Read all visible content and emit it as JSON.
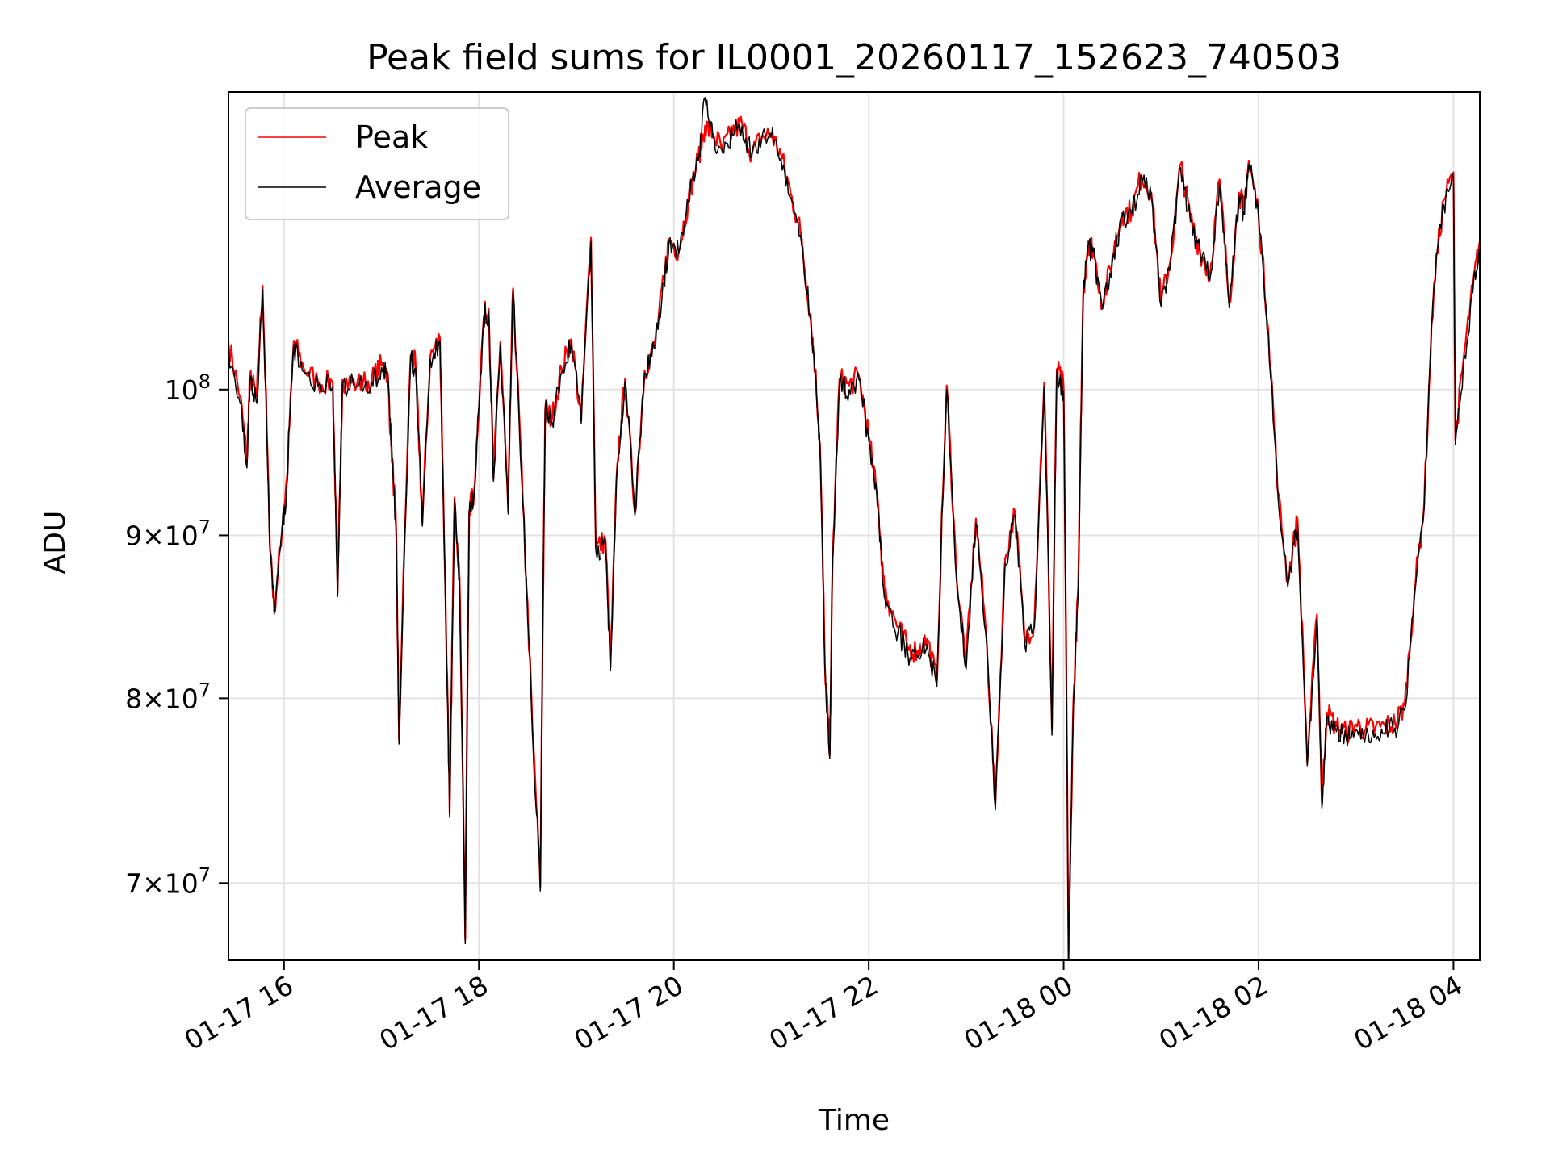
{
  "chart_data": {
    "type": "line",
    "title": "Peak field sums for IL0001_20260117_152623_740503",
    "xlabel": "Time",
    "ylabel": "ADU",
    "yscale": "log",
    "ylim": [
      66200000,
      124000000
    ],
    "xlim_hours": [
      15.43,
      28.27
    ],
    "grid": true,
    "legend_position": "upper-left",
    "x_ticks": [
      {
        "hour": 16,
        "label": "01-17 16"
      },
      {
        "hour": 18,
        "label": "01-17 18"
      },
      {
        "hour": 20,
        "label": "01-17 20"
      },
      {
        "hour": 22,
        "label": "01-17 22"
      },
      {
        "hour": 24,
        "label": "01-18 00"
      },
      {
        "hour": 26,
        "label": "01-18 02"
      },
      {
        "hour": 28,
        "label": "01-18 04"
      }
    ],
    "y_ticks": [
      {
        "value": 70000000,
        "mant": "7",
        "exp": "7"
      },
      {
        "value": 80000000,
        "mant": "8",
        "exp": "7"
      },
      {
        "value": 90000000,
        "mant": "9",
        "exp": "7"
      },
      {
        "value": 100000000,
        "mant": "",
        "exp": "8"
      }
    ],
    "colors": {
      "peak": "#ff0000",
      "average": "#000000",
      "grid": "#e3e3e3"
    },
    "series": [
      {
        "name": "Peak",
        "color": "#ff0000",
        "x": [
          15.43,
          15.55,
          15.62,
          15.65,
          15.72,
          15.78,
          15.85,
          15.9,
          15.98,
          16.03,
          16.1,
          16.2,
          16.35,
          16.5,
          16.55,
          16.6,
          16.75,
          16.9,
          17.0,
          17.06,
          17.1,
          17.15,
          17.18,
          17.3,
          17.35,
          17.42,
          17.5,
          17.6,
          17.65,
          17.7,
          17.75,
          17.8,
          17.86,
          17.9,
          17.95,
          18.05,
          18.1,
          18.15,
          18.22,
          18.3,
          18.35,
          18.45,
          18.55,
          18.63,
          18.68,
          18.75,
          18.85,
          18.95,
          19.05,
          19.15,
          19.2,
          19.3,
          19.35,
          19.42,
          19.5,
          19.6,
          19.7,
          19.8,
          19.9,
          19.95,
          20.05,
          20.15,
          20.25,
          20.32,
          20.4,
          20.5,
          20.6,
          20.7,
          20.8,
          20.9,
          21.0,
          21.1,
          21.2,
          21.3,
          21.4,
          21.45,
          21.5,
          21.55,
          21.6,
          21.63,
          21.7,
          21.8,
          21.9,
          22.0,
          22.1,
          22.15,
          22.2,
          22.3,
          22.4,
          22.5,
          22.6,
          22.7,
          22.8,
          22.9,
          23.0,
          23.1,
          23.2,
          23.3,
          23.4,
          23.5,
          23.6,
          23.7,
          23.8,
          23.88,
          23.93,
          24.0,
          24.05,
          24.1,
          24.15,
          24.2,
          24.25,
          24.3,
          24.4,
          24.5,
          24.6,
          24.7,
          24.8,
          24.9,
          25.0,
          25.1,
          25.2,
          25.3,
          25.4,
          25.5,
          25.6,
          25.7,
          25.8,
          25.85,
          25.9,
          26.0,
          26.1,
          26.2,
          26.3,
          26.4,
          26.5,
          26.6,
          26.65,
          26.7,
          26.8,
          26.9,
          27.0,
          27.1,
          27.2,
          27.3,
          27.4,
          27.5,
          27.6,
          27.7,
          27.8,
          27.9,
          28.0,
          28.02,
          28.1,
          28.2,
          28.27
        ],
        "values": [
          103500000,
          99500000,
          95000000,
          101000000,
          99500000,
          107800000,
          90500000,
          85200000,
          90500000,
          93800000,
          103600000,
          101600000,
          100500000,
          100500000,
          86300000,
          100700000,
          100400000,
          100700000,
          101800000,
          101300000,
          96200000,
          90600000,
          77600000,
          102500000,
          101800000,
          90800000,
          102400000,
          103800000,
          88000000,
          73600000,
          92500000,
          87500000,
          67200000,
          91600000,
          92800000,
          105500000,
          106000000,
          93800000,
          103500000,
          91600000,
          107600000,
          92300000,
          78200000,
          69800000,
          98600000,
          97900000,
          101500000,
          103700000,
          97800000,
          111600000,
          89200000,
          89700000,
          81800000,
          94800000,
          100800000,
          91500000,
          101400000,
          103200000,
          108300000,
          111500000,
          110500000,
          114800000,
          118200000,
          121000000,
          120300000,
          119000000,
          120500000,
          121200000,
          118600000,
          120000000,
          120300000,
          118500000,
          115200000,
          112100000,
          105600000,
          101500000,
          96200000,
          82000000,
          76800000,
          88500000,
          100800000,
          100300000,
          101000000,
          96700000,
          91800000,
          87000000,
          85800000,
          84200000,
          83000000,
          82800000,
          83500000,
          81000000,
          100300000,
          87500000,
          82000000,
          91100000,
          84200000,
          74100000,
          88500000,
          91600000,
          83500000,
          84500000,
          100500000,
          78200000,
          101500000,
          100200000,
          66200000,
          79800000,
          86700000,
          107000000,
          111300000,
          110800000,
          106300000,
          110000000,
          113600000,
          113800000,
          116800000,
          115300000,
          106500000,
          110000000,
          117700000,
          113200000,
          110600000,
          108500000,
          116400000,
          106400000,
          115300000,
          113900000,
          118000000,
          113500000,
          104500000,
          92800000,
          87000000,
          91100000,
          76400000,
          85000000,
          74200000,
          79200000,
          78400000,
          78000000,
          78500000,
          78200000,
          78300000,
          78400000,
          78600000,
          79600000,
          86400000,
          92100000,
          108000000,
          114700000,
          117000000,
          96400000,
          102000000,
          107700000,
          111300000
        ]
      },
      {
        "name": "Average",
        "color": "#000000",
        "x": [
          15.43,
          15.55,
          15.62,
          15.65,
          15.72,
          15.78,
          15.85,
          15.9,
          15.98,
          16.03,
          16.1,
          16.2,
          16.35,
          16.5,
          16.55,
          16.6,
          16.75,
          16.9,
          17.0,
          17.06,
          17.1,
          17.15,
          17.18,
          17.3,
          17.35,
          17.42,
          17.5,
          17.6,
          17.65,
          17.7,
          17.75,
          17.8,
          17.86,
          17.9,
          17.95,
          18.05,
          18.1,
          18.15,
          18.22,
          18.3,
          18.35,
          18.45,
          18.55,
          18.63,
          18.68,
          18.75,
          18.85,
          18.95,
          19.05,
          19.15,
          19.2,
          19.3,
          19.35,
          19.42,
          19.5,
          19.6,
          19.7,
          19.8,
          19.9,
          19.95,
          20.05,
          20.15,
          20.25,
          20.32,
          20.4,
          20.5,
          20.6,
          20.7,
          20.8,
          20.9,
          21.0,
          21.1,
          21.2,
          21.3,
          21.4,
          21.45,
          21.5,
          21.55,
          21.6,
          21.63,
          21.7,
          21.8,
          21.9,
          22.0,
          22.1,
          22.15,
          22.2,
          22.3,
          22.4,
          22.5,
          22.6,
          22.7,
          22.8,
          22.9,
          23.0,
          23.1,
          23.2,
          23.3,
          23.4,
          23.5,
          23.6,
          23.7,
          23.8,
          23.88,
          23.93,
          24.0,
          24.05,
          24.1,
          24.15,
          24.2,
          24.25,
          24.3,
          24.4,
          24.5,
          24.6,
          24.7,
          24.8,
          24.9,
          25.0,
          25.1,
          25.2,
          25.3,
          25.4,
          25.5,
          25.6,
          25.7,
          25.8,
          25.85,
          25.9,
          26.0,
          26.1,
          26.2,
          26.3,
          26.4,
          26.5,
          26.6,
          26.65,
          26.7,
          26.8,
          26.9,
          27.0,
          27.1,
          27.2,
          27.3,
          27.4,
          27.5,
          27.6,
          27.7,
          27.8,
          27.9,
          28.0,
          28.02,
          28.1,
          28.2,
          28.27
        ],
        "values": [
          103000000,
          99000000,
          94500000,
          100500000,
          99000000,
          107500000,
          90000000,
          85000000,
          90200000,
          93300000,
          103300000,
          101300000,
          100200000,
          100200000,
          86100000,
          100400000,
          100200000,
          100500000,
          101600000,
          101100000,
          96000000,
          90400000,
          77400000,
          102300000,
          101600000,
          90600000,
          102200000,
          103600000,
          87800000,
          73400000,
          92300000,
          87300000,
          67000000,
          91400000,
          92600000,
          105300000,
          105800000,
          93600000,
          103300000,
          91400000,
          107400000,
          92100000,
          78000000,
          69600000,
          98400000,
          97700000,
          101300000,
          103500000,
          97600000,
          111300000,
          89000000,
          89500000,
          81600000,
          94600000,
          100600000,
          91300000,
          101200000,
          103000000,
          108000000,
          111200000,
          110300000,
          114500000,
          118000000,
          123500000,
          120000000,
          118700000,
          120200000,
          121000000,
          118300000,
          119700000,
          120000000,
          118200000,
          114900000,
          111800000,
          105300000,
          101200000,
          95900000,
          81800000,
          76600000,
          88300000,
          100500000,
          100000000,
          100700000,
          96400000,
          91500000,
          86700000,
          85500000,
          83900000,
          82700000,
          82500000,
          83200000,
          80700000,
          100000000,
          87200000,
          81700000,
          90800000,
          83900000,
          73800000,
          88200000,
          91300000,
          83200000,
          84200000,
          100200000,
          77900000,
          101200000,
          99900000,
          66000000,
          79500000,
          86400000,
          106700000,
          111000000,
          110500000,
          106000000,
          109700000,
          113300000,
          113500000,
          116500000,
          115000000,
          106200000,
          109700000,
          117400000,
          112900000,
          110300000,
          108200000,
          116100000,
          106100000,
          115000000,
          113600000,
          117700000,
          113200000,
          104200000,
          92500000,
          86700000,
          90800000,
          76200000,
          84700000,
          73900000,
          78900000,
          78100000,
          77700000,
          78200000,
          77900000,
          78000000,
          78100000,
          78300000,
          79300000,
          86100000,
          91800000,
          107600000,
          114300000,
          116600000,
          96100000,
          101700000,
          107300000,
          110900000
        ]
      }
    ]
  }
}
